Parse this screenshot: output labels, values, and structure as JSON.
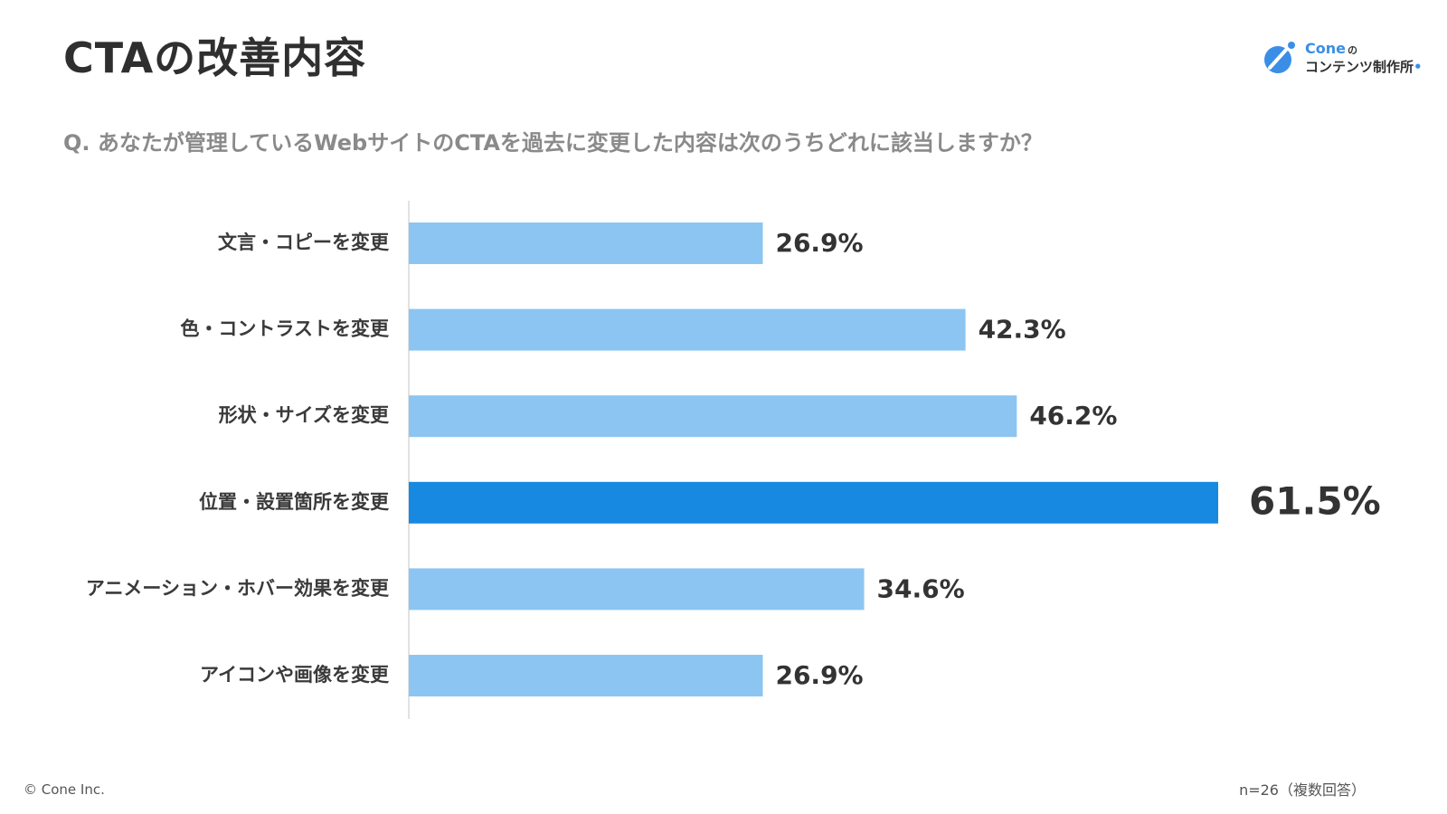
{
  "header": {
    "title": "CTAの改善内容",
    "question": "Q. あなたが管理しているWebサイトのCTAを過去に変更した内容は次のうちどれに該当しますか？"
  },
  "logo": {
    "line1": "Cone",
    "line1_suffix": "の",
    "line2": "コンテンツ制作所",
    "accent_color": "#3a8ee6"
  },
  "chart_data": {
    "type": "bar",
    "orientation": "horizontal",
    "categories": [
      "文言・コピーを変更",
      "色・コントラストを変更",
      "形状・サイズを変更",
      "位置・設置箇所を変更",
      "アニメーション・ホバー効果を変更",
      "アイコンや画像を変更"
    ],
    "values": [
      26.9,
      42.3,
      46.2,
      61.5,
      34.6,
      26.9
    ],
    "value_labels": [
      "26.9%",
      "42.3%",
      "46.2%",
      "61.5%",
      "34.6%",
      "26.9%"
    ],
    "highlight_index": 3,
    "colors": {
      "bar": "#8cc5f2",
      "highlight": "#1789e1",
      "axis": "#d9d9d9"
    },
    "xlim": [
      0,
      61.5
    ],
    "grid": false,
    "legend": "none"
  },
  "footer": {
    "copyright": "© Cone Inc.",
    "sample_note": "n=26（複数回答）"
  }
}
